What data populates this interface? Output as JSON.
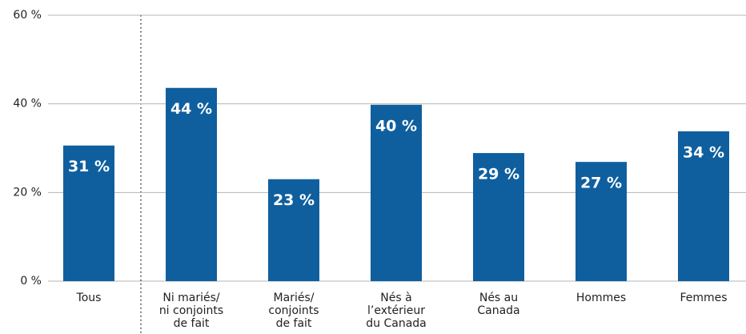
{
  "chart_data": {
    "type": "bar",
    "categories": [
      "Tous",
      "Ni mariés/\nni conjoints\nde fait",
      "Mariés/\nconjoints\nde fait",
      "Nés à\nl’extérieur\ndu Canada",
      "Nés au\nCanada",
      "Hommes",
      "Femmes"
    ],
    "values": [
      30.6,
      43.6,
      23.0,
      39.8,
      28.9,
      26.9,
      33.8
    ],
    "value_labels": [
      "31 %",
      "44 %",
      "23 %",
      "40 %",
      "29 %",
      "27 %",
      "34 %"
    ],
    "color": "#0f5f9f",
    "ylim": [
      0,
      60
    ],
    "yticks": [
      {
        "value": 0,
        "label": "0 %"
      },
      {
        "value": 20,
        "label": "20 %"
      },
      {
        "value": 40,
        "label": "40 %"
      },
      {
        "value": 60,
        "label": "60 %"
      }
    ],
    "grid": true
  }
}
